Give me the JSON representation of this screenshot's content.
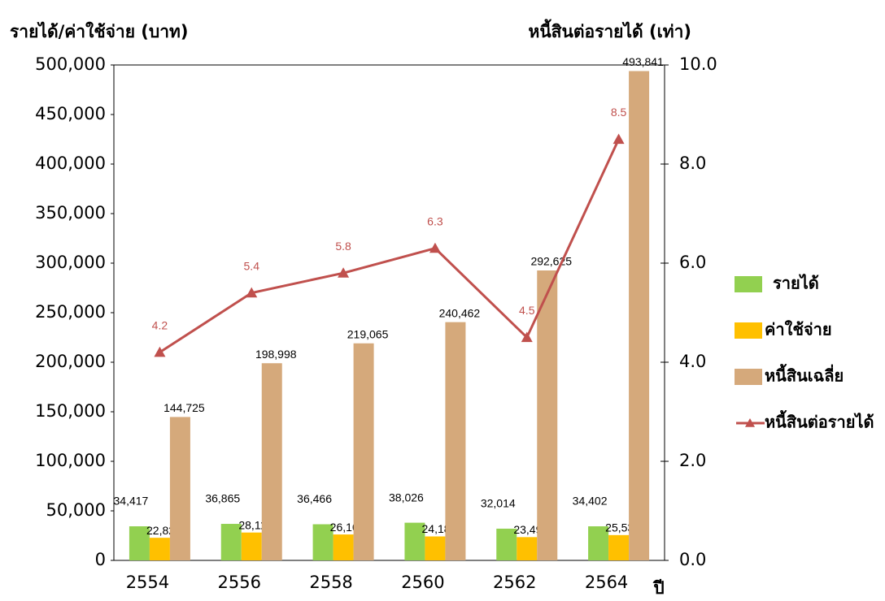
{
  "chart_data": {
    "type": "bar",
    "ylabel": "รายได้/ค่าใช้จ่าย (บาท)",
    "y2label": "หนี้สินต่อรายได้ (เท่า)",
    "xlabel": "ปี",
    "categories": [
      "2554",
      "2556",
      "2558",
      "2560",
      "2562",
      "2564"
    ],
    "series": [
      {
        "name": "รายได้",
        "color": "#92d050",
        "values": [
          34417,
          36865,
          36466,
          38026,
          32014,
          34402
        ],
        "value_labels": [
          "34,417",
          "36,865",
          "36,466",
          "38,026",
          "32,014",
          "34,402"
        ]
      },
      {
        "name": "ค่าใช้จ่าย",
        "color": "#ffc000",
        "values": [
          22826,
          28119,
          26165,
          24186,
          23490,
          25539
        ],
        "value_labels": [
          "22,826",
          "28,119",
          "26,165",
          "24,186",
          "23,490",
          "25,539"
        ]
      },
      {
        "name": "หนี้สินเฉลี่ย",
        "color": "#d5a97b",
        "values": [
          144725,
          198998,
          219065,
          240462,
          292625,
          493841
        ],
        "value_labels": [
          "144,725",
          "198,998",
          "219,065",
          "240,462",
          "292,625",
          "493,841"
        ]
      },
      {
        "name": "หนี้สินต่อรายได้",
        "color": "#c0504d",
        "type": "line",
        "axis": "y2",
        "values": [
          4.2,
          5.4,
          5.8,
          6.3,
          4.5,
          8.5
        ]
      }
    ],
    "ylim": [
      0,
      500000
    ],
    "yticks": [
      0,
      {
        "value": 50000,
        "label": "50,000"
      },
      {
        "value": 100000,
        "label": "100,000"
      },
      {
        "value": 150000,
        "label": "150,000"
      },
      {
        "value": 200000,
        "label": "200,000"
      },
      {
        "value": 250000,
        "label": "250,000"
      },
      {
        "value": 300000,
        "label": "300,000"
      },
      {
        "value": 350000,
        "label": "350,000"
      },
      {
        "value": 400000,
        "label": "400,000"
      },
      {
        "value": 450000,
        "label": "450,000"
      },
      {
        "value": 500000,
        "label": "500,000"
      }
    ],
    "y2lim": [
      0,
      10
    ],
    "y2ticks": [
      {
        "value": 0,
        "label": "0.0"
      },
      {
        "value": 2,
        "label": "2.0"
      },
      {
        "value": 4,
        "label": "4.0"
      },
      {
        "value": 6,
        "label": "6.0"
      },
      {
        "value": 8,
        "label": "8.0"
      },
      {
        "value": 10,
        "label": "10.0"
      }
    ],
    "legend": "right"
  }
}
